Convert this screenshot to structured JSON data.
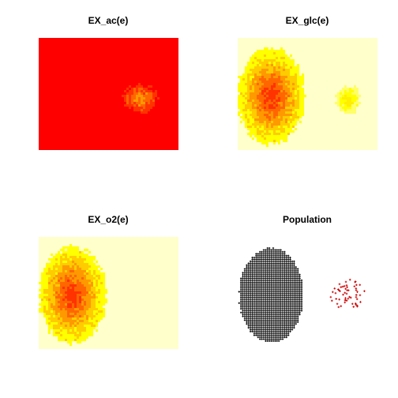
{
  "chart_data": [
    {
      "type": "heatmap",
      "title": "EX_ac(e)",
      "background": "#ff0000",
      "blobs": [
        {
          "center": [
            1.46,
            0.54
          ],
          "radius": [
            0.23,
            0.12
          ],
          "levels": [
            "#ff3300",
            "#ff6600",
            "#ff9900"
          ],
          "noise": 0.35
        }
      ]
    },
    {
      "type": "heatmap",
      "title": "EX_glc(e)",
      "background": "#ffffcc",
      "blobs": [
        {
          "center": [
            0.48,
            0.52
          ],
          "radius": [
            0.48,
            0.43
          ],
          "levels": [
            "#ffff00",
            "#ffcc00",
            "#ff9900",
            "#ff6600",
            "#ff3300"
          ],
          "noise": 0.12
        },
        {
          "center": [
            1.58,
            0.55
          ],
          "radius": [
            0.18,
            0.12
          ],
          "levels": [
            "#ffff66",
            "#ffff00",
            "#ffee00"
          ],
          "noise": 0.3
        }
      ]
    },
    {
      "type": "heatmap",
      "title": "EX_o2(e)",
      "background": "#ffffcc",
      "blobs": [
        {
          "center": [
            0.48,
            0.52
          ],
          "radius": [
            0.48,
            0.43
          ],
          "levels": [
            "#ffff00",
            "#ffcc00",
            "#ff9900",
            "#ff6600",
            "#ff3300"
          ],
          "noise": 0.12
        }
      ]
    },
    {
      "type": "scatter",
      "title": "Population",
      "series": [
        {
          "color": "#000000",
          "cluster": {
            "center": [
              0.48,
              0.52
            ],
            "radius": [
              0.46,
              0.42
            ]
          },
          "fill": true
        },
        {
          "color": "#cc0000",
          "cluster": {
            "center": [
              1.58,
              0.52
            ],
            "radius": [
              0.25,
              0.14
            ]
          },
          "fill": false
        }
      ]
    }
  ]
}
